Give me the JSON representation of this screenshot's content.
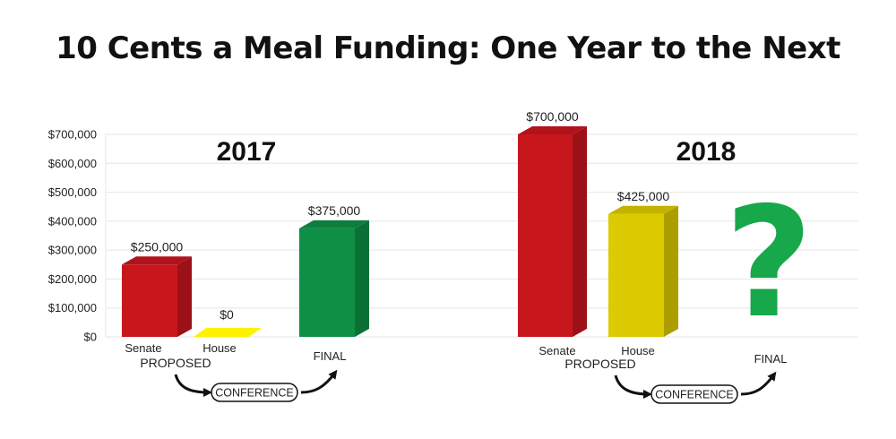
{
  "title": "10 Cents a Meal Funding: One Year to the Next",
  "chart_data": {
    "type": "bar",
    "ylim": [
      0,
      700000
    ],
    "yticks": [
      "$0",
      "$100,000",
      "$200,000",
      "$300,000",
      "$400,000",
      "$500,000",
      "$600,000",
      "$700,000"
    ],
    "grid": true,
    "groups": [
      {
        "year": "2017",
        "bars": [
          {
            "category": "Senate",
            "value": 250000,
            "label": "$250,000",
            "color": "#c8161d"
          },
          {
            "category": "House",
            "value": 0,
            "label": "$0",
            "color": "#fff200"
          },
          {
            "category": "FINAL",
            "value": 375000,
            "label": "$375,000",
            "color": "#0e8f45"
          }
        ],
        "proposed_label": "PROPOSED",
        "conference_label": "CONFERENCE"
      },
      {
        "year": "2018",
        "bars": [
          {
            "category": "Senate",
            "value": 700000,
            "label": "$700,000",
            "color": "#c8161d"
          },
          {
            "category": "House",
            "value": 425000,
            "label": "$425,000",
            "color": "#dccb00"
          },
          {
            "category": "FINAL",
            "value": null,
            "label": "",
            "color": "#17a84b"
          }
        ],
        "proposed_label": "PROPOSED",
        "conference_label": "CONFERENCE",
        "final_placeholder": "?"
      }
    ]
  }
}
